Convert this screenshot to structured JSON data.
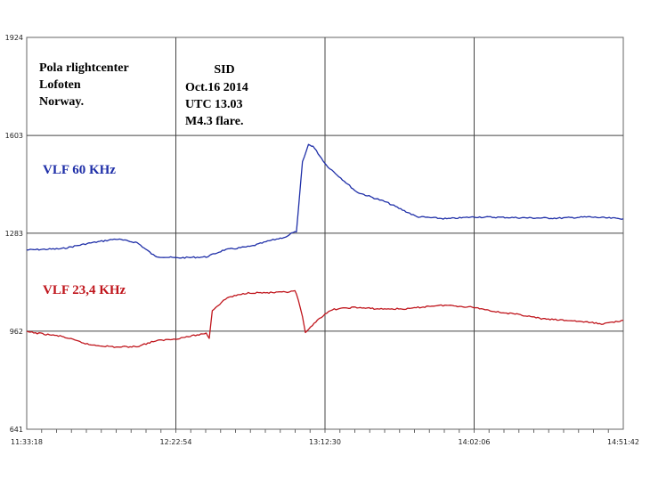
{
  "chart_data": {
    "type": "line",
    "title": "SID",
    "annotations": {
      "station": [
        "Pola rlightcenter",
        "Lofoten",
        "Norway."
      ],
      "event": [
        "SID",
        "Oct.16 2014",
        "UTC 13.03",
        "M4.3 flare."
      ]
    },
    "xlabel": "",
    "ylabel": "",
    "x_ticks": [
      "11:33:18",
      "12:22:54",
      "13:12:30",
      "14:02:06",
      "14:51:42"
    ],
    "y_ticks": [
      "1924",
      "1603",
      "1283",
      "962",
      "641"
    ],
    "ylim": [
      641,
      1924
    ],
    "grid": true,
    "series": [
      {
        "name": "VLF 60 KHz",
        "color": "#1f2fa8",
        "points": [
          [
            "11:33:18",
            1228
          ],
          [
            "11:45:00",
            1232
          ],
          [
            "11:54:00",
            1250
          ],
          [
            "12:03:00",
            1264
          ],
          [
            "12:10:00",
            1252
          ],
          [
            "12:16:00",
            1207
          ],
          [
            "12:22:54",
            1202
          ],
          [
            "12:33:00",
            1205
          ],
          [
            "12:39:00",
            1228
          ],
          [
            "12:48:00",
            1240
          ],
          [
            "12:54:00",
            1258
          ],
          [
            "13:00:00",
            1272
          ],
          [
            "13:02:00",
            1287
          ],
          [
            "13:03:00",
            1285
          ],
          [
            "13:05:00",
            1515
          ],
          [
            "13:07:00",
            1573
          ],
          [
            "13:08:30",
            1568
          ],
          [
            "13:13:00",
            1505
          ],
          [
            "13:23:00",
            1418
          ],
          [
            "13:33:00",
            1384
          ],
          [
            "13:43:00",
            1337
          ],
          [
            "13:53:00",
            1330
          ],
          [
            "14:02:06",
            1336
          ],
          [
            "14:10:00",
            1335
          ],
          [
            "14:20:00",
            1333
          ],
          [
            "14:30:00",
            1332
          ],
          [
            "14:40:00",
            1336
          ],
          [
            "14:51:42",
            1330
          ]
        ]
      },
      {
        "name": "VLF 23,4 KHz",
        "color": "#c0161d",
        "points": [
          [
            "11:33:18",
            960
          ],
          [
            "11:45:00",
            945
          ],
          [
            "11:54:00",
            918
          ],
          [
            "12:03:00",
            910
          ],
          [
            "12:10:00",
            912
          ],
          [
            "12:16:00",
            930
          ],
          [
            "12:22:54",
            937
          ],
          [
            "12:33:00",
            955
          ],
          [
            "12:34:00",
            940
          ],
          [
            "12:35:00",
            1030
          ],
          [
            "12:40:00",
            1072
          ],
          [
            "12:47:00",
            1088
          ],
          [
            "12:55:00",
            1088
          ],
          [
            "13:00:00",
            1090
          ],
          [
            "13:02:30",
            1093
          ],
          [
            "13:03:00",
            1085
          ],
          [
            "13:05:00",
            1010
          ],
          [
            "13:06:00",
            955
          ],
          [
            "13:10:00",
            1000
          ],
          [
            "13:15:00",
            1033
          ],
          [
            "13:22:00",
            1040
          ],
          [
            "13:30:00",
            1035
          ],
          [
            "13:40:00",
            1035
          ],
          [
            "13:48:00",
            1045
          ],
          [
            "13:53:00",
            1047
          ],
          [
            "14:02:06",
            1040
          ],
          [
            "14:10:00",
            1025
          ],
          [
            "14:18:00",
            1015
          ],
          [
            "14:25:00",
            1002
          ],
          [
            "14:35:00",
            996
          ],
          [
            "14:45:00",
            986
          ],
          [
            "14:51:42",
            998
          ]
        ]
      }
    ]
  }
}
